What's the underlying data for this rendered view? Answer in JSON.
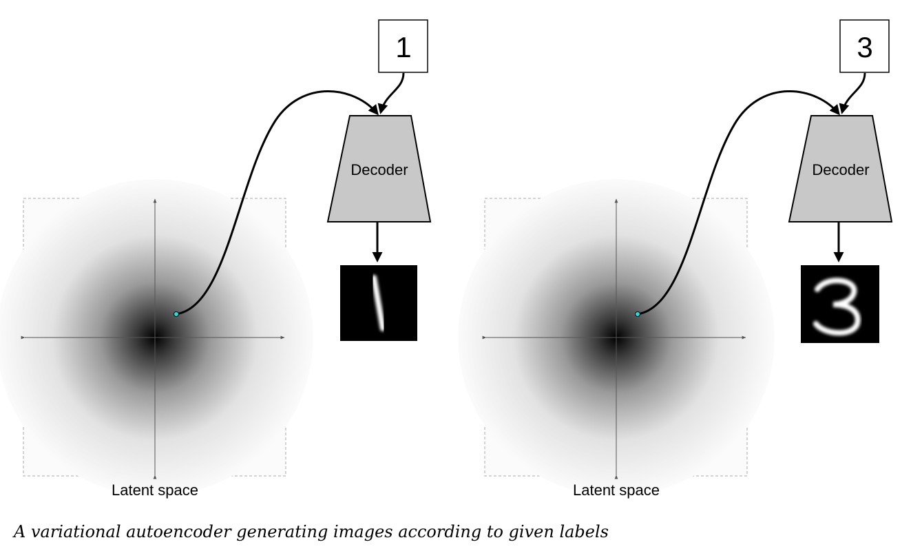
{
  "panels": [
    {
      "label": "1",
      "decoder": "Decoder",
      "latent": "Latent space"
    },
    {
      "label": "3",
      "decoder": "Decoder",
      "latent": "Latent space"
    }
  ],
  "caption": "A variational autoencoder generating images according to given labels"
}
